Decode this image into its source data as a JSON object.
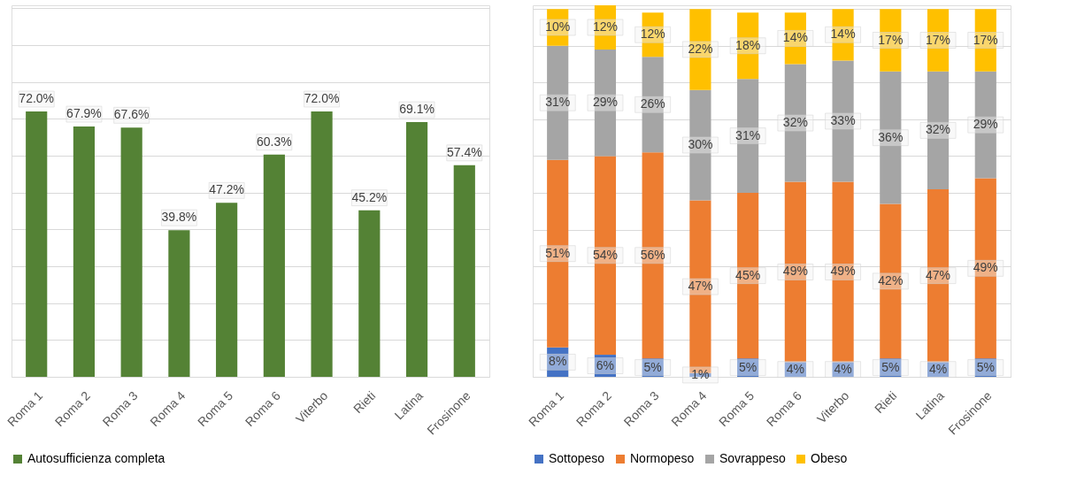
{
  "chart_data": [
    {
      "type": "bar",
      "categories": [
        "Roma 1",
        "Roma 2",
        "Roma 3",
        "Roma 4",
        "Roma 5",
        "Roma 6",
        "Viterbo",
        "Rieti",
        "Latina",
        "Frosinone"
      ],
      "series": [
        {
          "name": "Autosufficienza completa",
          "color": "#548235",
          "values": [
            72.0,
            67.9,
            67.6,
            39.8,
            47.2,
            60.3,
            72.0,
            45.2,
            69.1,
            57.4
          ],
          "value_labels": [
            "72.0%",
            "67.9%",
            "67.6%",
            "39.8%",
            "47.2%",
            "60.3%",
            "72.0%",
            "45.2%",
            "69.1%",
            "57.4%"
          ]
        }
      ],
      "tick_labels": "x",
      "grid": "y",
      "legend": "bottom"
    },
    {
      "type": "bar",
      "stacked": true,
      "categories": [
        "Roma 1",
        "Roma 2",
        "Roma 3",
        "Roma 4",
        "Roma 5",
        "Roma 6",
        "Viterbo",
        "Rieti",
        "Latina",
        "Frosinone"
      ],
      "series": [
        {
          "name": "Sottopeso",
          "color": "#4472c4",
          "values": [
            8,
            6,
            5,
            1,
            5,
            4,
            4,
            5,
            4,
            5
          ],
          "value_labels": [
            "8%",
            "6%",
            "5%",
            "1%",
            "5%",
            "4%",
            "4%",
            "5%",
            "4%",
            "5%"
          ]
        },
        {
          "name": "Normopeso",
          "color": "#ed7d31",
          "values": [
            51,
            54,
            56,
            47,
            45,
            49,
            49,
            42,
            47,
            49
          ],
          "value_labels": [
            "51%",
            "54%",
            "56%",
            "47%",
            "45%",
            "49%",
            "49%",
            "42%",
            "47%",
            "49%"
          ]
        },
        {
          "name": "Sovrappeso",
          "color": "#a5a5a5",
          "values": [
            31,
            29,
            26,
            30,
            31,
            32,
            33,
            36,
            32,
            29
          ],
          "value_labels": [
            "31%",
            "29%",
            "26%",
            "30%",
            "31%",
            "32%",
            "33%",
            "36%",
            "32%",
            "29%"
          ]
        },
        {
          "name": "Obeso",
          "color": "#ffc000",
          "values": [
            10,
            12,
            12,
            22,
            18,
            14,
            14,
            17,
            17,
            17
          ],
          "value_labels": [
            "10%",
            "12%",
            "12%",
            "22%",
            "18%",
            "14%",
            "14%",
            "17%",
            "17%",
            "17%"
          ]
        }
      ],
      "tick_labels": "x",
      "grid": "y",
      "legend": "bottom"
    }
  ]
}
